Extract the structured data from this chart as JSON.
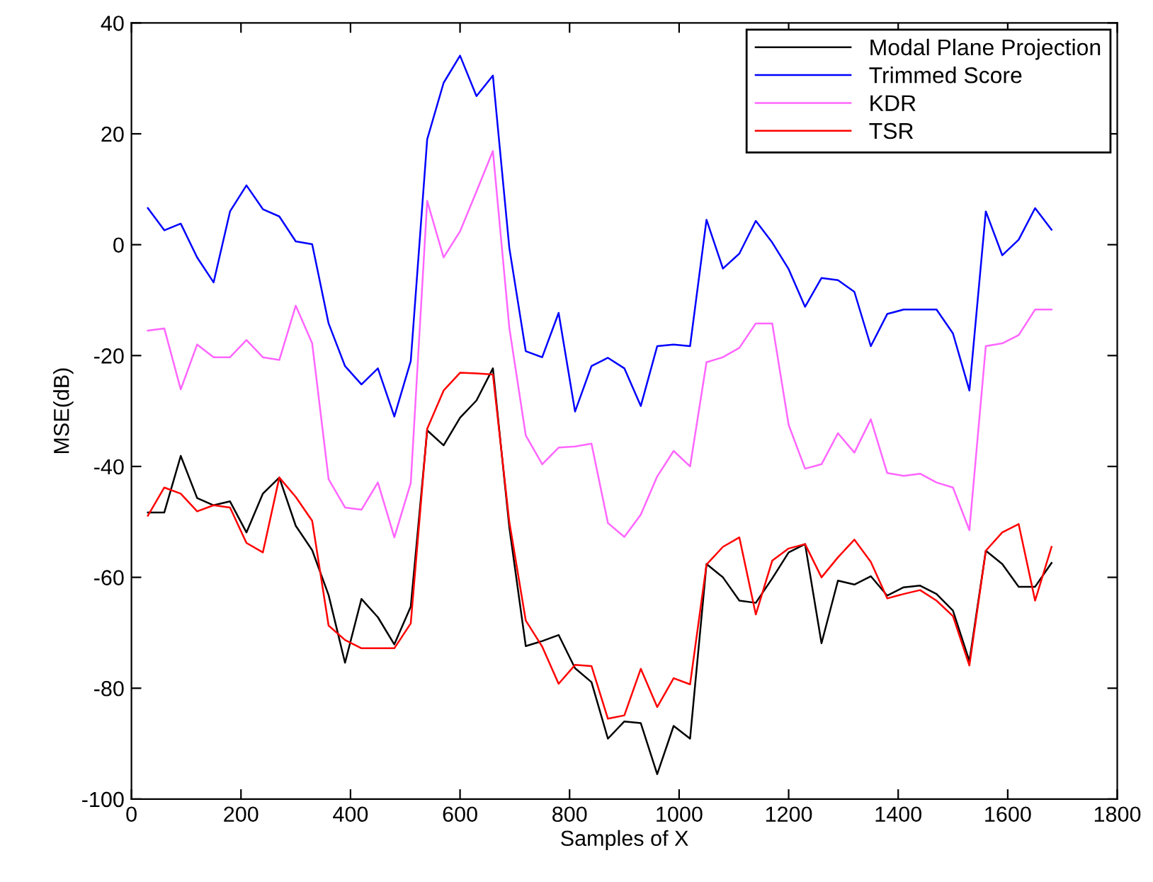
{
  "chart_data": {
    "type": "line",
    "xlabel": "Samples of X",
    "ylabel": "MSE(dB)",
    "x": [
      30,
      60,
      90,
      120,
      150,
      180,
      210,
      240,
      270,
      300,
      330,
      360,
      390,
      420,
      450,
      480,
      510,
      540,
      570,
      600,
      630,
      660,
      690,
      720,
      750,
      780,
      810,
      840,
      870,
      900,
      930,
      960,
      990,
      1020,
      1050,
      1080,
      1110,
      1140,
      1170,
      1200,
      1230,
      1260,
      1290,
      1320,
      1350,
      1380,
      1410,
      1440,
      1470,
      1500,
      1530,
      1560,
      1590,
      1620,
      1650,
      1680
    ],
    "xlim": [
      0,
      1800
    ],
    "xticks": [
      0,
      200,
      400,
      600,
      800,
      1000,
      1200,
      1400,
      1600,
      1800
    ],
    "ylim": [
      -100,
      40
    ],
    "yticks": [
      -100,
      -80,
      -60,
      -40,
      -20,
      0,
      20,
      40
    ],
    "legend": "top right",
    "grid": false,
    "line_style": "solid",
    "marker": "none",
    "series": [
      {
        "name": "Modal Plane Projection",
        "color": "#000000",
        "values": [
          -48.3,
          -48.3,
          -38.1,
          -45.7,
          -47,
          -46.3,
          -51.9,
          -44.9,
          -42,
          -50.7,
          -55.1,
          -63.2,
          -75.4,
          -63.9,
          -67.2,
          -72.1,
          -65.3,
          -33.5,
          -36.2,
          -31.2,
          -28.1,
          -22.3,
          -51,
          -72.4,
          -71.5,
          -70.4,
          -76.4,
          -78.9,
          -89.1,
          -86,
          -86.3,
          -95.5,
          -86.8,
          -89.1,
          -57.6,
          -60,
          -64.2,
          -64.6,
          -60.2,
          -55.5,
          -54,
          -71.9,
          -60.6,
          -61.3,
          -59.8,
          -63.3,
          -61.8,
          -61.5,
          -63,
          -66,
          -75.1,
          -55.2,
          -57.6,
          -61.7,
          -61.7,
          -57.4
        ]
      },
      {
        "name": "Trimmed Score",
        "color": "#0000ff",
        "values": [
          6.6,
          2.6,
          3.8,
          -2.3,
          -6.8,
          6,
          10.7,
          6.4,
          5.1,
          0.6,
          0.1,
          -14.2,
          -21.9,
          -25.2,
          -22.3,
          -31,
          -21,
          19,
          29.2,
          34.1,
          26.8,
          30.5,
          -0.6,
          -19.2,
          -20.3,
          -12.3,
          -30.1,
          -21.9,
          -20.4,
          -22.3,
          -29.1,
          -18.3,
          -18,
          -18.3,
          4.5,
          -4.3,
          -1.6,
          4.3,
          0.4,
          -4.4,
          -11.2,
          -6,
          -6.4,
          -8.5,
          -18.3,
          -12.5,
          -11.7,
          -11.7,
          -11.7,
          -16,
          -26.3,
          6,
          -1.9,
          0.9,
          6.6,
          2.7
        ]
      },
      {
        "name": "KDR",
        "color": "#ff66ff",
        "values": [
          -15.5,
          -15.1,
          -26.1,
          -18,
          -20.3,
          -20.3,
          -17.2,
          -20.3,
          -20.8,
          -11,
          -17.8,
          -42.3,
          -47.4,
          -47.8,
          -42.9,
          -52.8,
          -43,
          7.9,
          -2.3,
          2.4,
          9.6,
          16.9,
          -15,
          -34.4,
          -39.6,
          -36.6,
          -36.4,
          -35.9,
          -50.2,
          -52.7,
          -48.7,
          -41.8,
          -37.2,
          -40,
          -21.2,
          -20.3,
          -18.6,
          -14.2,
          -14.2,
          -32.5,
          -40.4,
          -39.6,
          -34,
          -37.5,
          -31.5,
          -41.2,
          -41.7,
          -41.3,
          -42.9,
          -43.8,
          -51.5,
          -18.3,
          -17.8,
          -16.3,
          -11.7,
          -11.7
        ]
      },
      {
        "name": "TSR",
        "color": "#ff0000",
        "values": [
          -48.9,
          -43.8,
          -44.9,
          -48.1,
          -47,
          -47.4,
          -53.8,
          -55.5,
          -42,
          -45.5,
          -49.8,
          -68.7,
          -71.3,
          -72.8,
          -72.8,
          -72.8,
          -68.3,
          -33.2,
          -26.3,
          -23.1,
          -23.2,
          -23.4,
          -50,
          -67.8,
          -72.5,
          -79.2,
          -75.8,
          -76,
          -85.5,
          -84.9,
          -76.5,
          -83.4,
          -78.2,
          -79.3,
          -57.7,
          -54.5,
          -52.8,
          -66.7,
          -57,
          -54.8,
          -54,
          -60,
          -56.4,
          -53.2,
          -57.2,
          -63.8,
          -63,
          -62.3,
          -64.2,
          -67,
          -75.9,
          -55.2,
          -51.9,
          -50.4,
          -64.2,
          -54.5
        ]
      }
    ]
  }
}
